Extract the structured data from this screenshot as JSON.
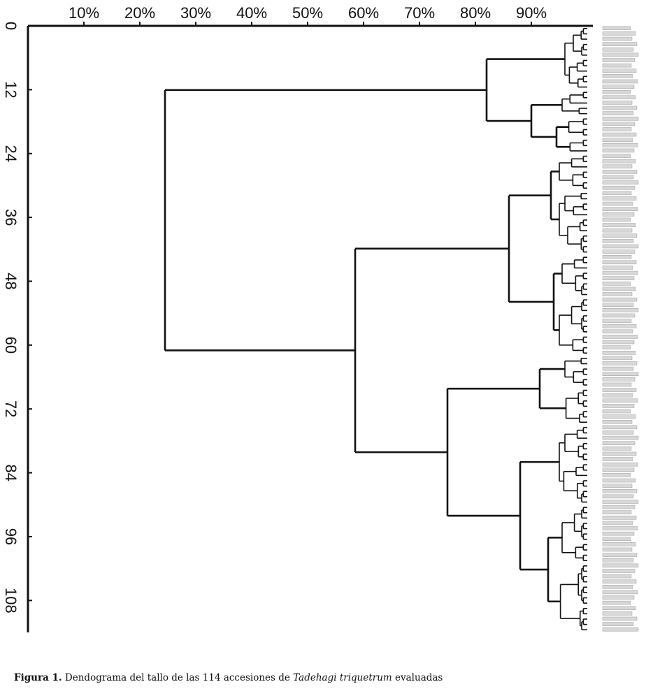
{
  "chart_data": {
    "type": "dendrogram",
    "title": "",
    "xlabel": "",
    "ylabel": "",
    "x_ticks": [
      "10%",
      "20%",
      "30%",
      "40%",
      "50%",
      "60%",
      "70%",
      "80%",
      "90%"
    ],
    "x_tick_values": [
      10,
      20,
      30,
      40,
      50,
      60,
      70,
      80,
      90
    ],
    "xlim": [
      0,
      100
    ],
    "y_ticks": [
      "0",
      "12",
      "24",
      "36",
      "48",
      "60",
      "72",
      "84",
      "96",
      "108"
    ],
    "y_tick_values": [
      0,
      12,
      24,
      36,
      48,
      60,
      72,
      84,
      96,
      108
    ],
    "ylim": [
      0,
      114
    ],
    "n_leaves": 114,
    "main_clusters": [
      {
        "leaves": [
          0,
          23
        ],
        "merge_similarity": 82
      },
      {
        "leaves": [
          24,
          61
        ],
        "merge_similarity": 86
      },
      {
        "leaves": [
          62,
          113
        ],
        "merge_similarity": 75
      }
    ],
    "merges": [
      {
        "groups": "A+B (leaves 0-113)",
        "similarity": 24.5
      },
      {
        "groups": "leaves 24-61 + leaves 62-113",
        "similarity": 58.5
      },
      {
        "groups": "leaves 62-113",
        "similarity": 75
      },
      {
        "groups": "leaves 0-23",
        "similarity": 82
      },
      {
        "groups": "leaves 24-61",
        "similarity": 86
      }
    ]
  },
  "caption": {
    "label": "Figura 1.",
    "text_before": "Dendograma del tallo de las 114 accesiones de",
    "species": "Tadehagi triquetrum",
    "text_after": "evaluadas"
  }
}
